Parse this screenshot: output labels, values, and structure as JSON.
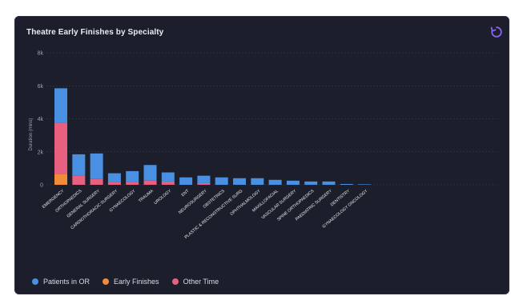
{
  "card": {
    "title": "Theatre Early Finishes by Specialty",
    "refresh_icon": "refresh-icon"
  },
  "colors": {
    "background": "#1c1f2b",
    "gridline": "#3a3f50",
    "text": "#e9ecf2",
    "muted": "#9aa1b3",
    "accent": "#8a63f5"
  },
  "legend": [
    {
      "name": "Patients in OR",
      "color": "#4a90e2"
    },
    {
      "name": "Early Finishes",
      "color": "#f08b3a"
    },
    {
      "name": "Other Time",
      "color": "#e8607f"
    }
  ],
  "chart_data": {
    "type": "bar",
    "stacked": true,
    "title": "Theatre Early Finishes by Specialty",
    "ylabel": "Duration (mins)",
    "ylim": [
      0,
      8000
    ],
    "yticks": [
      0,
      2000,
      4000,
      6000,
      8000
    ],
    "ytick_labels": [
      "0",
      "2k",
      "4k",
      "6k",
      "8k"
    ],
    "grid": true,
    "legend_position": "bottom-left",
    "categories": [
      "EMERGENCY",
      "ORTHOPAEDICS",
      "GENERAL SURGERY",
      "CARDIOTHORACIC SURGERY",
      "GYNAECOLOGY",
      "TRAUMA",
      "UROLOGY",
      "ENT",
      "NEUROSURGERY",
      "OBSTETRICS",
      "PLASTIC & RECONSTRUCTIVE SURG",
      "OPHTHALMOLOGY",
      "MAXILLOFACIAL",
      "VASCULAR SURGERY",
      "SPINE ORTHOPAEDICS",
      "PAEDIATRIC SURGERY",
      "DENTISTRY",
      "GYNAECOLOGY ONCOLOGY"
    ],
    "series": [
      {
        "name": "Early Finishes",
        "color": "#f08b3a",
        "values": [
          650,
          0,
          0,
          0,
          0,
          0,
          0,
          0,
          0,
          0,
          0,
          0,
          0,
          0,
          0,
          0,
          0,
          0
        ]
      },
      {
        "name": "Other Time",
        "color": "#e8607f",
        "values": [
          3100,
          550,
          350,
          150,
          180,
          250,
          200,
          0,
          100,
          0,
          0,
          0,
          0,
          0,
          0,
          0,
          0,
          0
        ]
      },
      {
        "name": "Patients in OR",
        "color": "#4a90e2",
        "values": [
          2100,
          1300,
          1550,
          550,
          650,
          950,
          550,
          450,
          450,
          450,
          400,
          400,
          300,
          250,
          200,
          200,
          50,
          30
        ]
      }
    ]
  }
}
